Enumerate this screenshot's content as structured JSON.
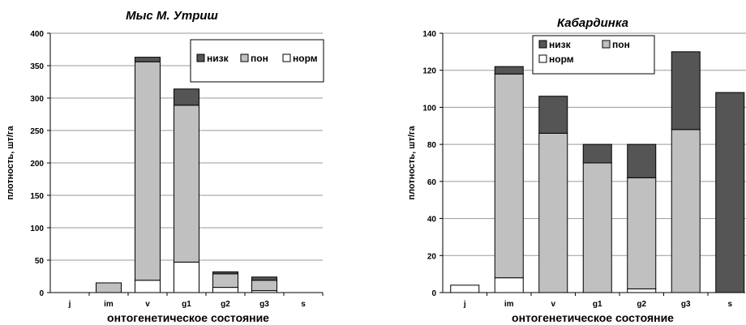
{
  "colors": {
    "low": "#555555",
    "mid": "#c0c0c0",
    "norm": "#ffffff",
    "grid": "#9a9a9a",
    "edge": "#000000"
  },
  "chart_data": [
    {
      "type": "bar",
      "stacked": true,
      "title": "Мыс М. Утриш",
      "xlabel": "онтогенетическое состояние",
      "ylabel": "плотность, шт/га",
      "ylim": [
        0,
        400
      ],
      "yticks": [
        "0",
        "50",
        "100",
        "150",
        "200",
        "250",
        "300",
        "350",
        "400"
      ],
      "categories": [
        "j",
        "im",
        "v",
        "g1",
        "g2",
        "g3",
        "s"
      ],
      "grid": true,
      "legend": {
        "placement": "top-right",
        "order": [
          "низк",
          "пон",
          "норм"
        ]
      },
      "series": [
        {
          "name": "норм",
          "key": "norm",
          "values": [
            0,
            0,
            19,
            47,
            8,
            3,
            0
          ]
        },
        {
          "name": "пон",
          "key": "mid",
          "values": [
            0,
            15,
            337,
            242,
            21,
            16,
            0
          ]
        },
        {
          "name": "низк",
          "key": "low",
          "values": [
            0,
            0,
            7,
            25,
            3,
            5,
            0
          ]
        }
      ]
    },
    {
      "type": "bar",
      "stacked": true,
      "title": "Кабардинка",
      "xlabel": "онтогенетическое состояние",
      "ylabel": "плотность, шт/га",
      "ylim": [
        0,
        140
      ],
      "yticks": [
        "0",
        "20",
        "40",
        "60",
        "80",
        "100",
        "120",
        "140"
      ],
      "categories": [
        "j",
        "im",
        "v",
        "g1",
        "g2",
        "g3",
        "s"
      ],
      "grid": true,
      "legend": {
        "placement": "top-left",
        "order": [
          "низк",
          "пон",
          "норм"
        ]
      },
      "series": [
        {
          "name": "норм",
          "key": "norm",
          "values": [
            4,
            8,
            0,
            0,
            2,
            0,
            0
          ]
        },
        {
          "name": "пон",
          "key": "mid",
          "values": [
            0,
            110,
            86,
            70,
            60,
            88,
            0
          ]
        },
        {
          "name": "низк",
          "key": "low",
          "values": [
            0,
            4,
            20,
            10,
            18,
            42,
            108
          ]
        }
      ]
    }
  ]
}
